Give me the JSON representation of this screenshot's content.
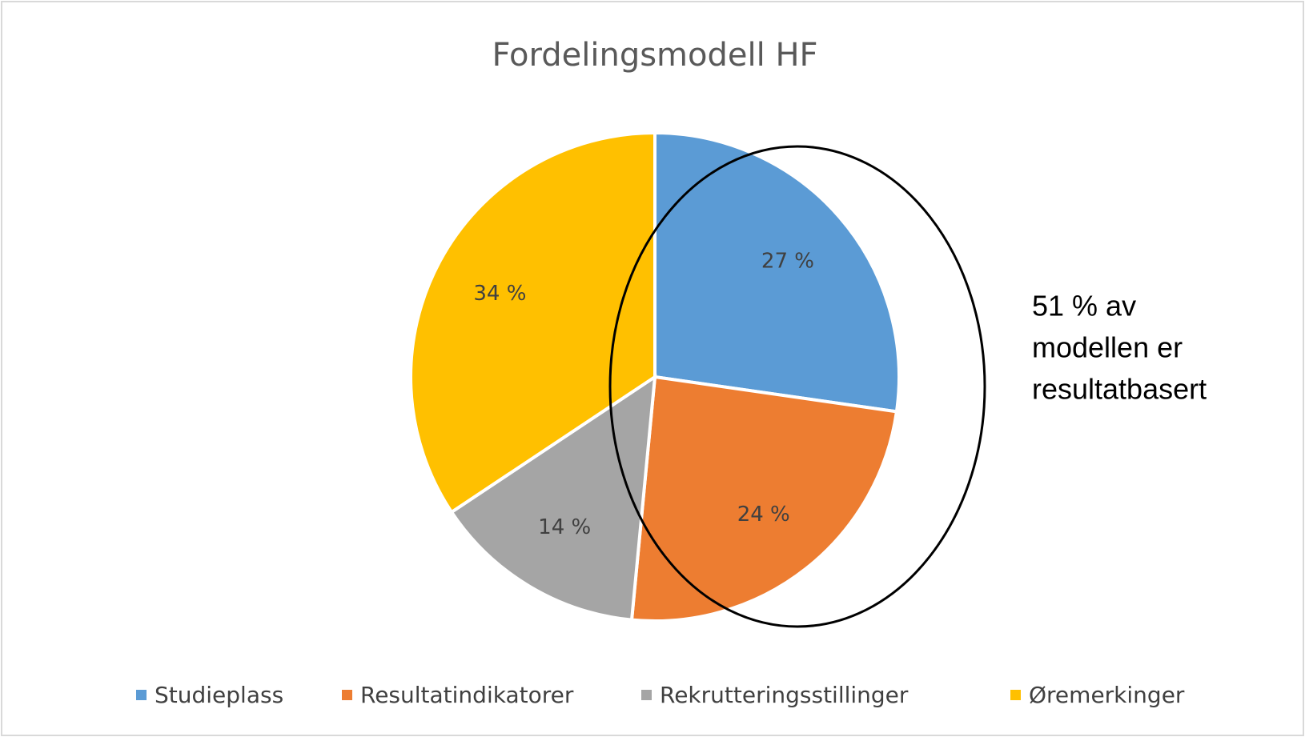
{
  "chart_data": {
    "type": "pie",
    "title": "Fordelingsmodell HF",
    "categories": [
      "Studieplass",
      "Resultatindikatorer",
      "Rekrutteringsstillinger",
      "Øremerkinger"
    ],
    "values": [
      27,
      24,
      14,
      34
    ],
    "value_labels": [
      "27 %",
      "24 %",
      "14 %",
      "34 %"
    ],
    "colors": [
      "#5b9bd5",
      "#ed7d31",
      "#a5a5a5",
      "#ffc000"
    ],
    "legend": "bottom",
    "annotation": [
      "51 % av",
      "modellen er",
      "resultatbasert"
    ]
  }
}
